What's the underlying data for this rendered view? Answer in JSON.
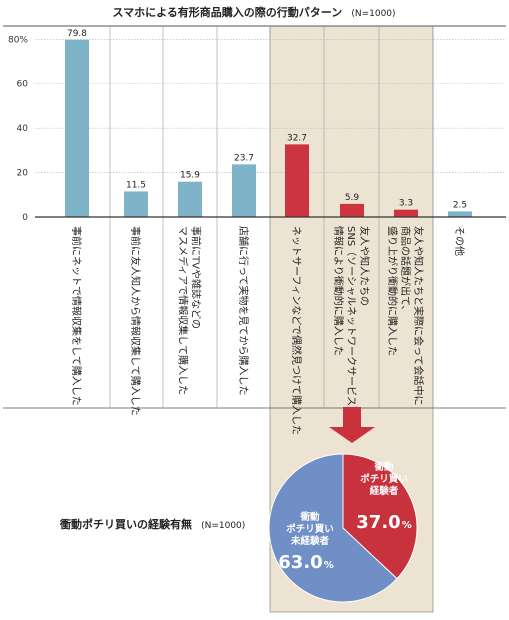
{
  "chart_data": [
    {
      "type": "bar",
      "title": "スマホによる有形商品購入の際の行動パターン",
      "title_note": "(N=1000)",
      "y_ticks": [
        "0",
        "20",
        "40",
        "60",
        "80%"
      ],
      "ylim": [
        0,
        86
      ],
      "grid": true,
      "categories": [
        "事前にネットで情報収集をして購入した",
        "事前に友人知人から情報収集して購入した",
        "事前にTVや雑誌などのマスメディアで情報収集して購入した",
        "店舗に行って実物を見てから購入した",
        "ネットサーフィンなどで偶然見つけて購入した",
        "友人や知人たちのSNS（ソーシャルネットワークサービス）での情報により衝動的に購入した",
        "友人や知人たちと実際に会って会話中に商品の話題が出て、盛り上がり衝動的に購入した",
        "その他"
      ],
      "category_lines": [
        [
          "事前にネットで情報収集をして購入した"
        ],
        [
          "事前に友人知人から情報収集して購入した"
        ],
        [
          "事前にTVや雑誌などの",
          "マスメディアで情報収集して購入した"
        ],
        [
          "店舗に行って実物を見てから購入した"
        ],
        [
          "ネットサーフィンなどで偶然見つけて購入した"
        ],
        [
          "友人や知人たちの",
          "SNS（ソーシャルネットワークサービス）での",
          "情報により衝動的に購入した"
        ],
        [
          "友人や知人たちと実際に会って会話中に",
          "商品の話題が出て、",
          "盛り上がり衝動的に購入した"
        ],
        [
          "その他"
        ]
      ],
      "values": [
        79.8,
        11.5,
        15.9,
        23.7,
        32.7,
        5.9,
        3.3,
        2.5
      ],
      "value_labels": [
        "79.8",
        "11.5",
        "15.9",
        "23.7",
        "32.7",
        "5.9",
        "3.3",
        "2.5"
      ],
      "highlighted": [
        false,
        false,
        false,
        false,
        true,
        true,
        true,
        false
      ]
    },
    {
      "type": "pie",
      "title": "衝動ポチリ買いの経験有無",
      "title_note": "(N=1000)",
      "slices": [
        {
          "label_lines": [
            "衝動",
            "ポチリ買い",
            "経験者"
          ],
          "value": 37.0,
          "value_text": "37.0",
          "unit": "%"
        },
        {
          "label_lines": [
            "衝動",
            "ポチリ買い",
            "未経験者"
          ],
          "value": 63.0,
          "value_text": "63.0",
          "unit": "%"
        }
      ]
    }
  ],
  "colors": {
    "normal_bar": "#7fb3c8",
    "highlight_bar": "#cc3540",
    "highlight_bg": "#ece3d3",
    "arrow": "#c9323d",
    "pie_experienced": "#c8323d",
    "pie_inexperienced": "#6f8fc6"
  }
}
